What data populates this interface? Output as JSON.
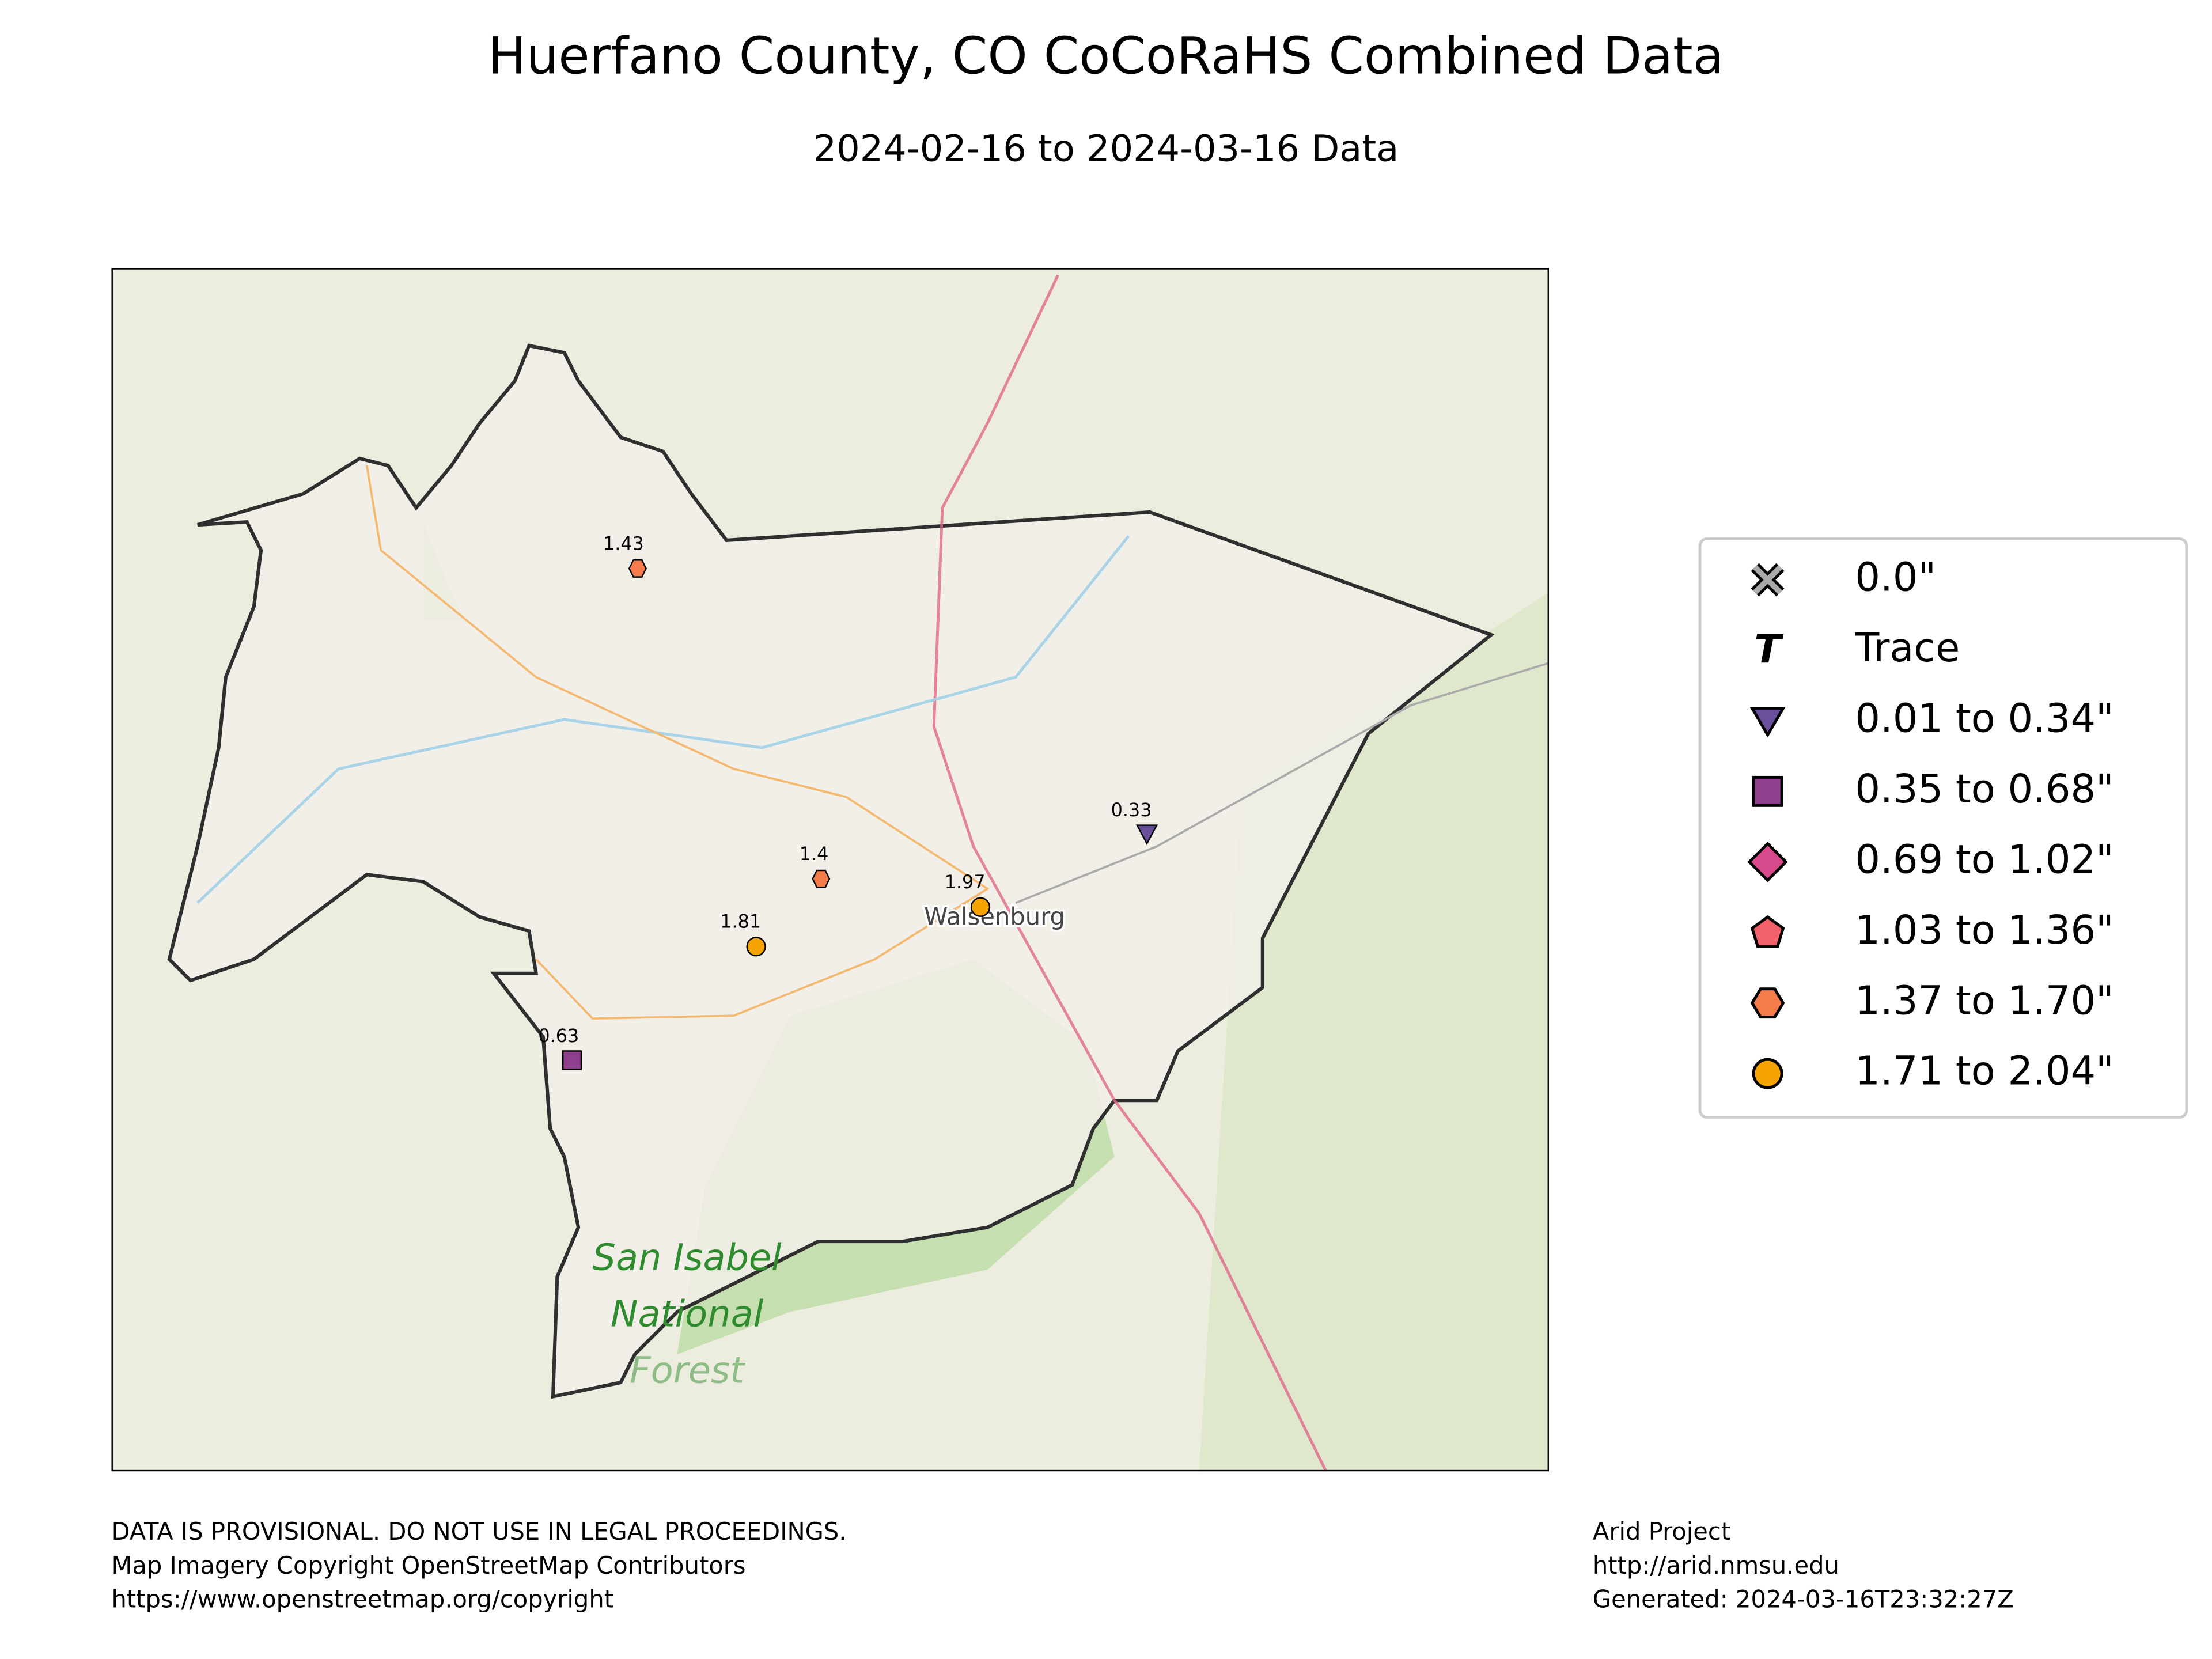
{
  "header": {
    "title": "Huerfano County, CO CoCoRaHS Combined Data",
    "subtitle": "2024-02-16 to 2024-03-16 Data"
  },
  "map": {
    "places": [
      "Walsenburg",
      "San Isabel",
      "National",
      "Forest"
    ],
    "stations": [
      {
        "value": 1.43
      },
      {
        "value": 1.4
      },
      {
        "value": 1.97
      },
      {
        "value": 1.81
      },
      {
        "value": 0.63
      },
      {
        "value": 0.33
      }
    ]
  },
  "legend": [
    "0.0\"",
    "Trace",
    "0.01 to 0.34\"",
    "0.35 to 0.68\"",
    "0.69 to 1.02\"",
    "1.03 to 1.36\"",
    "1.37 to 1.70\"",
    "1.71 to 2.04\""
  ],
  "footer": {
    "left": [
      "DATA IS PROVISIONAL. DO NOT USE IN LEGAL PROCEEDINGS.",
      "Map Imagery Copyright OpenStreetMap Contributors",
      "https://www.openstreetmap.org/copyright"
    ],
    "right": [
      "Arid Project",
      "http://arid.nmsu.edu",
      "Generated: 2024-03-16T23:32:27Z"
    ]
  }
}
